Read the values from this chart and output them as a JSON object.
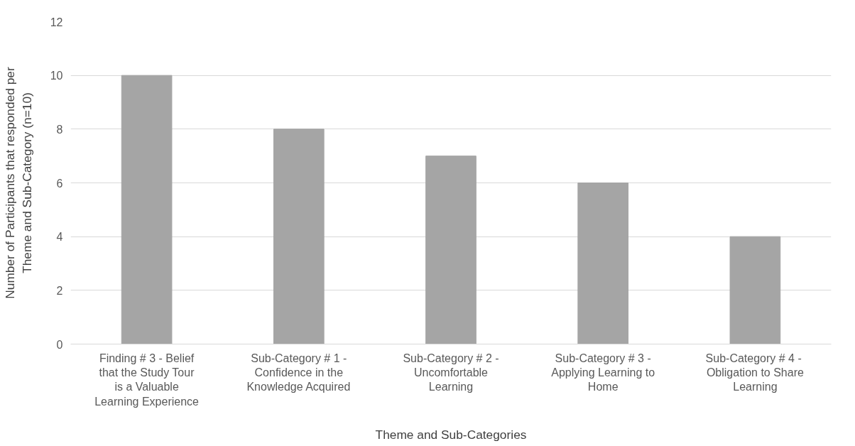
{
  "chart_data": {
    "type": "bar",
    "categories": [
      "Finding # 3 - Belief that the Study Tour is a Valuable Learning Experience",
      "Sub-Category # 1 - Confidence in the Knowledge Acquired",
      "Sub-Category # 2 - Uncomfortable Learning",
      "Sub-Category # 3 - Applying Learning to Home",
      "Sub-Category #  4 - Obligation to Share Learning"
    ],
    "values": [
      10,
      8,
      7,
      6,
      4
    ],
    "color": "#a5a5a5",
    "xlabel": "Theme and Sub-Categories",
    "ylabel": "Number of Participants that responded per Theme and Sub-Category (n=10)",
    "ylim": [
      0,
      12
    ],
    "yticks": [
      0,
      2,
      4,
      6,
      8,
      10,
      12
    ],
    "grid": "y"
  }
}
